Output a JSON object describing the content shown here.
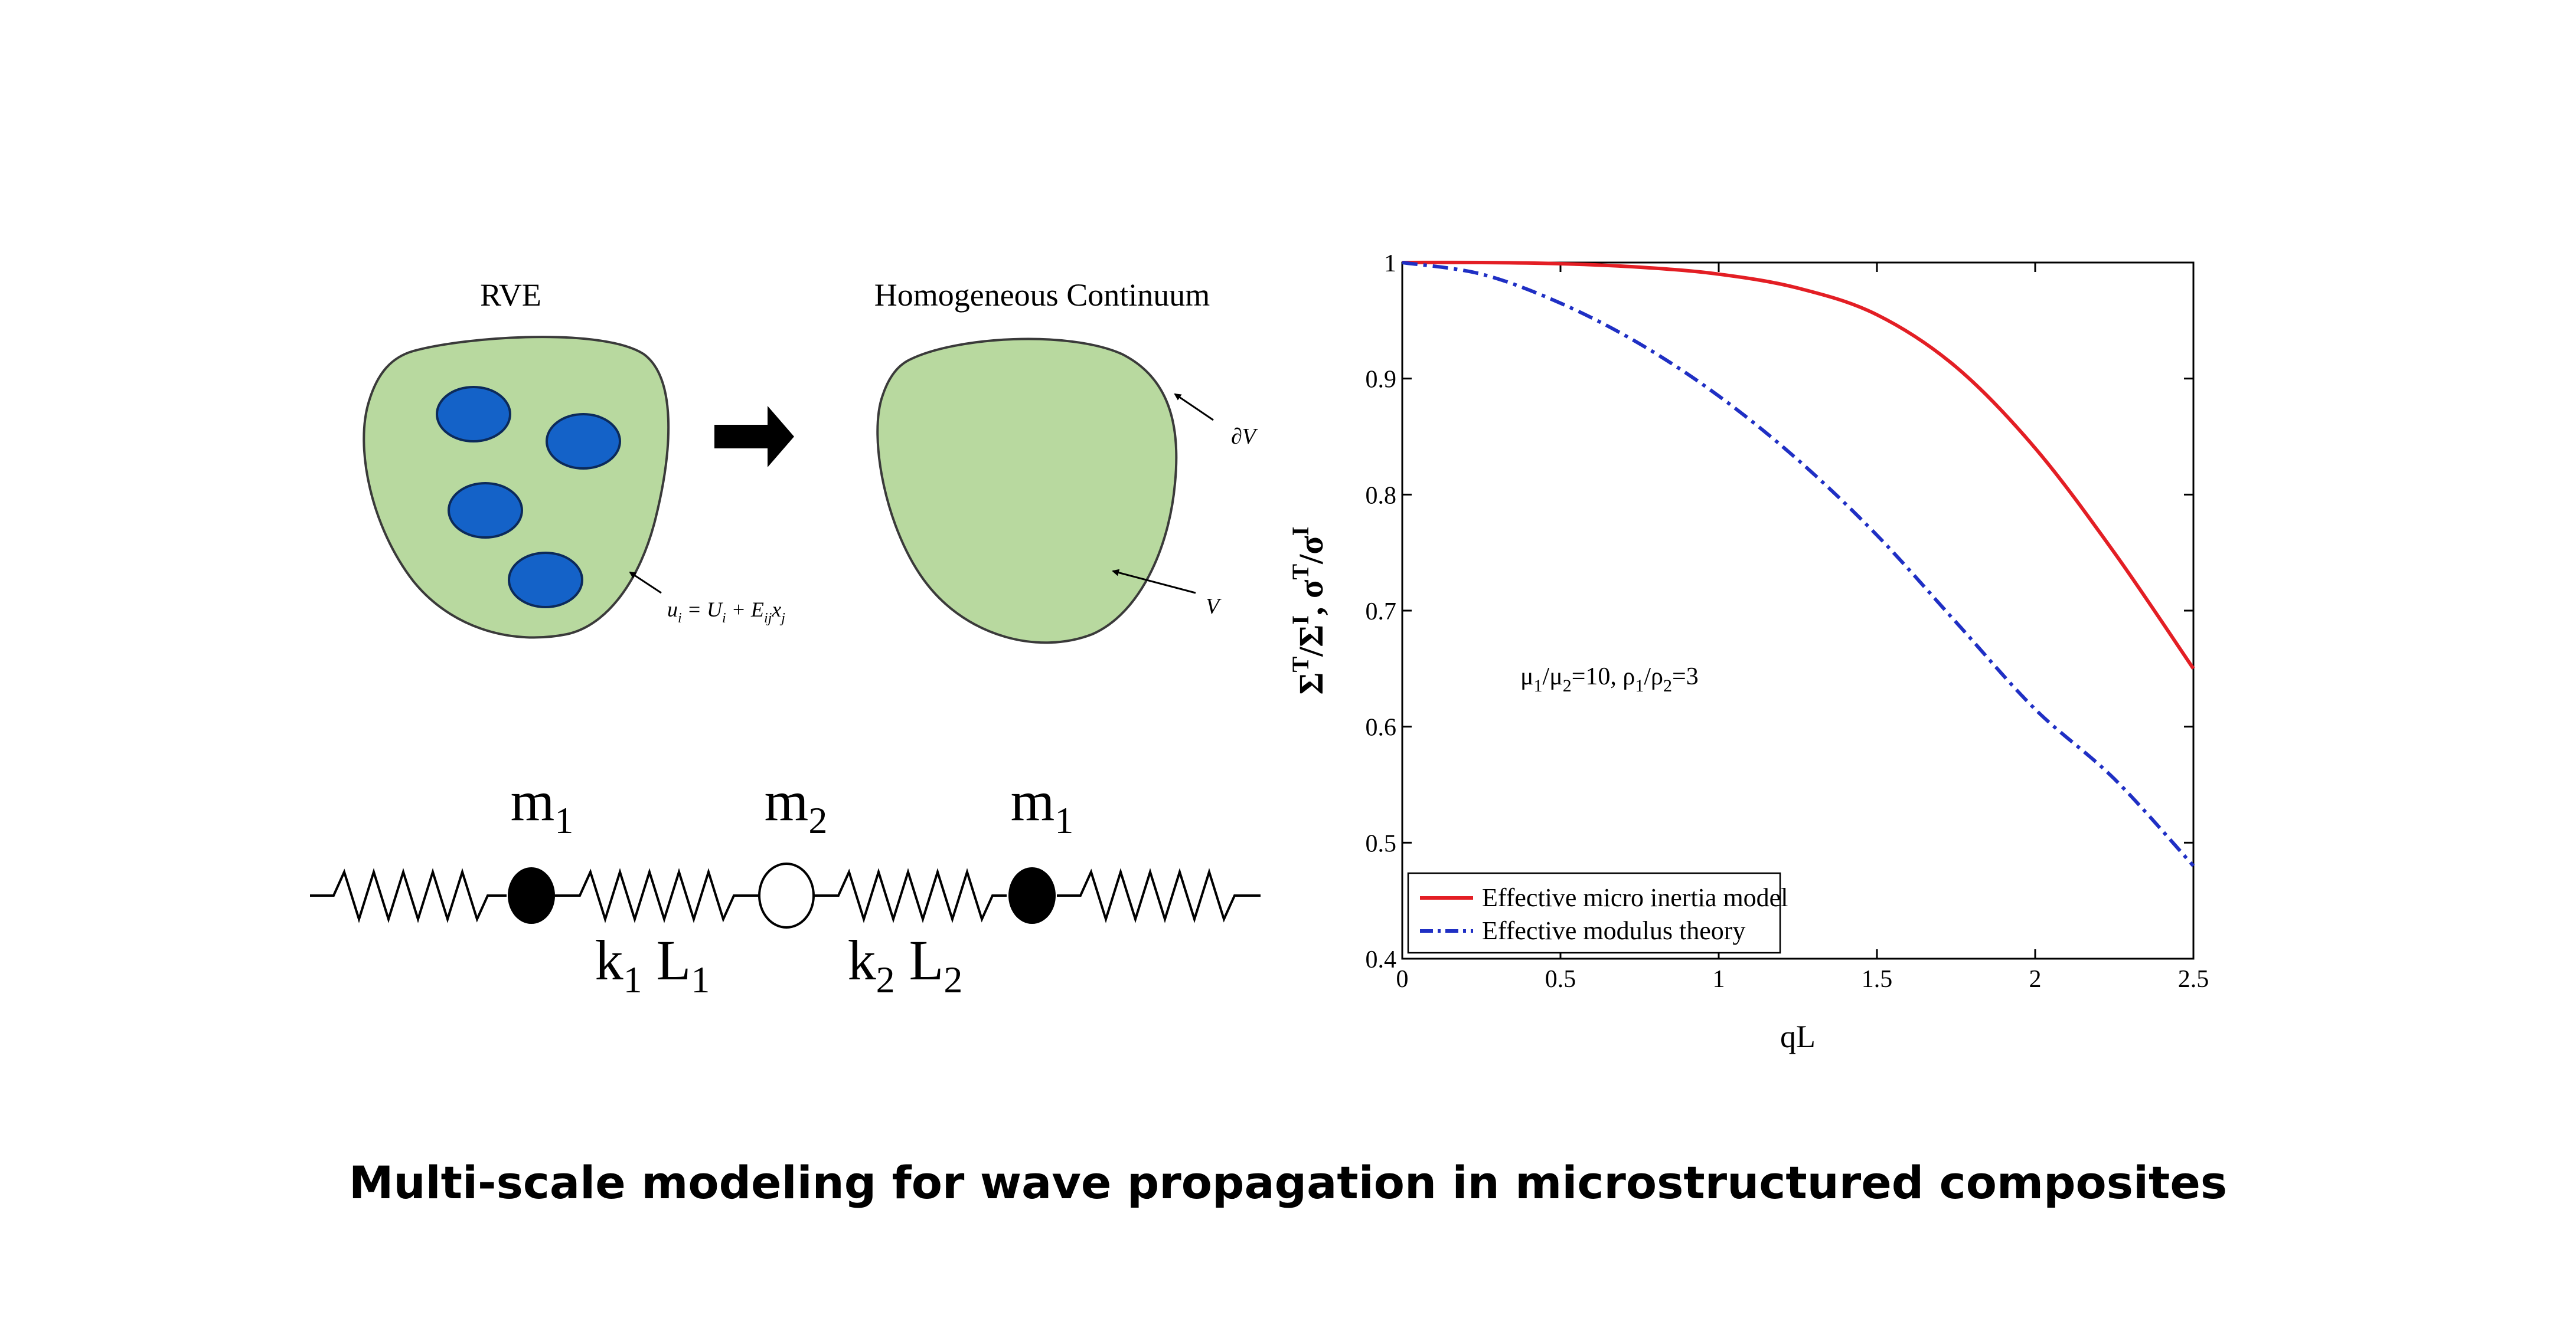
{
  "caption": "Multi-scale modeling for wave propagation in microstructured composites",
  "rve": {
    "title": "RVE",
    "boundary_label_parts": [
      "u",
      "i",
      " = U",
      "i",
      " + E",
      "ij",
      "x",
      "j"
    ]
  },
  "continuum": {
    "title": "Homogeneous Continuum",
    "boundary_label": "∂V",
    "volume_label": "V"
  },
  "chain": {
    "masses": [
      {
        "base": "m",
        "sub": "1"
      },
      {
        "base": "m",
        "sub": "2"
      },
      {
        "base": "m",
        "sub": "1"
      }
    ],
    "springs": [
      {
        "k_base": "k",
        "k_sub": "1",
        "l_base": "L",
        "l_sub": "1"
      },
      {
        "k_base": "k",
        "k_sub": "2",
        "l_base": "L",
        "l_sub": "2"
      }
    ]
  },
  "chart_data": {
    "type": "line",
    "xlabel": "qL",
    "ylabel_parts": [
      "Σ",
      "T",
      "/Σ",
      "I",
      ", σ",
      "T",
      "/σ",
      "I"
    ],
    "xlim": [
      0,
      2.5
    ],
    "ylim": [
      0.4,
      1
    ],
    "xticks": [
      "0",
      "0.5",
      "1",
      "1.5",
      "2",
      "2.5"
    ],
    "yticks": [
      "0.4",
      "0.5",
      "0.6",
      "0.7",
      "0.8",
      "0.9",
      "1"
    ],
    "annotation_parts": [
      "μ",
      "1",
      "/μ",
      "2",
      "=10, ρ",
      "1",
      "/ρ",
      "2",
      "=3"
    ],
    "legend_position": "bottom-left",
    "series": [
      {
        "name": "Effective micro inertia model",
        "color": "#e31e24",
        "style": "solid",
        "x": [
          0,
          0.25,
          0.5,
          0.75,
          1.0,
          1.25,
          1.5,
          1.75,
          2.0,
          2.25,
          2.5
        ],
        "y": [
          1.0,
          1.0,
          0.999,
          0.996,
          0.99,
          0.978,
          0.955,
          0.91,
          0.84,
          0.75,
          0.65
        ]
      },
      {
        "name": "Effective modulus theory",
        "color": "#1f2fc4",
        "style": "dashdot",
        "x": [
          0,
          0.25,
          0.5,
          0.75,
          1.0,
          1.25,
          1.5,
          1.75,
          2.0,
          2.25,
          2.5
        ],
        "y": [
          1.0,
          0.99,
          0.965,
          0.93,
          0.885,
          0.83,
          0.765,
          0.69,
          0.615,
          0.555,
          0.48
        ]
      }
    ]
  }
}
